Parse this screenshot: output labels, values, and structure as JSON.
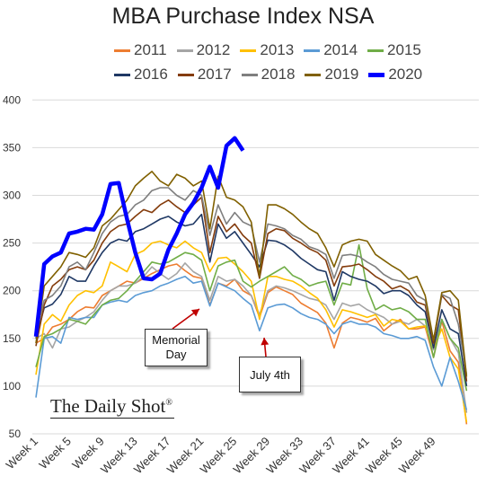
{
  "chart_data": {
    "type": "line",
    "title": "MBA Purchase Index NSA",
    "xlabel": "",
    "ylabel": "",
    "ylim": [
      50,
      400
    ],
    "yticks": [
      "50",
      "100",
      "150",
      "200",
      "250",
      "300",
      "350",
      "400"
    ],
    "xtick_labels": [
      "Week 1",
      "Week 5",
      "Week 9",
      "Week 13",
      "Week 17",
      "Week 21",
      "Week 25",
      "Week 29",
      "Week 33",
      "Week 37",
      "Week 41",
      "Week 45",
      "Week 49"
    ],
    "xtick_weeks": [
      1,
      5,
      9,
      13,
      17,
      21,
      25,
      29,
      33,
      37,
      41,
      45,
      49
    ],
    "grid": true,
    "legend_position": "top",
    "series": [
      {
        "name": "2011",
        "color": "#ED7D31",
        "width": 1.6,
        "values": [
          145,
          150,
          162,
          165,
          170,
          178,
          183,
          182,
          195,
          200,
          205,
          210,
          208,
          213,
          218,
          222,
          226,
          228,
          221,
          215,
          213,
          185,
          208,
          205,
          212,
          200,
          195,
          172,
          198,
          204,
          200,
          196,
          187,
          182,
          177,
          166,
          140,
          166,
          172,
          170,
          167,
          171,
          158,
          165,
          170,
          160,
          160,
          162,
          130,
          168,
          137,
          125,
          60
        ]
      },
      {
        "name": "2012",
        "color": "#A5A5A5",
        "width": 1.6,
        "values": [
          150,
          155,
          140,
          160,
          162,
          168,
          172,
          178,
          190,
          200,
          205,
          205,
          208,
          215,
          225,
          218,
          212,
          218,
          229,
          220,
          215,
          190,
          215,
          210,
          212,
          205,
          195,
          175,
          200,
          205,
          203,
          200,
          196,
          192,
          190,
          185,
          170,
          187,
          184,
          186,
          180,
          176,
          172,
          165,
          168,
          165,
          170,
          163,
          138,
          170,
          150,
          135,
          72
        ]
      },
      {
        "name": "2013",
        "color": "#FFC000",
        "width": 1.6,
        "values": [
          112,
          165,
          175,
          168,
          185,
          195,
          200,
          198,
          205,
          230,
          225,
          220,
          238,
          242,
          250,
          252,
          248,
          245,
          252,
          245,
          240,
          220,
          234,
          235,
          228,
          220,
          210,
          170,
          215,
          215,
          212,
          210,
          205,
          198,
          192,
          180,
          162,
          180,
          178,
          175,
          172,
          175,
          163,
          170,
          168,
          160,
          162,
          163,
          140,
          160,
          130,
          118,
          62
        ]
      },
      {
        "name": "2014",
        "color": "#5B9BD5",
        "width": 1.6,
        "values": [
          88,
          150,
          152,
          145,
          172,
          170,
          172,
          172,
          185,
          188,
          190,
          188,
          195,
          198,
          200,
          205,
          208,
          212,
          215,
          208,
          210,
          184,
          208,
          204,
          200,
          192,
          185,
          158,
          182,
          185,
          186,
          182,
          176,
          172,
          170,
          165,
          155,
          165,
          168,
          165,
          165,
          162,
          155,
          153,
          150,
          150,
          152,
          148,
          120,
          100,
          130,
          105,
          75
        ]
      },
      {
        "name": "2015",
        "color": "#70AD47",
        "width": 1.6,
        "values": [
          120,
          152,
          155,
          160,
          170,
          168,
          165,
          175,
          185,
          190,
          192,
          200,
          210,
          220,
          230,
          228,
          230,
          235,
          240,
          238,
          232,
          200,
          226,
          230,
          232,
          210,
          204,
          210,
          215,
          220,
          225,
          216,
          212,
          205,
          208,
          210,
          185,
          208,
          206,
          248,
          202,
          180,
          185,
          180,
          182,
          178,
          170,
          170,
          130,
          170,
          150,
          140,
          95
        ]
      },
      {
        "name": "2016",
        "color": "#1F3864",
        "width": 1.6,
        "values": [
          150,
          182,
          186,
          196,
          215,
          210,
          210,
          226,
          240,
          250,
          254,
          252,
          262,
          265,
          270,
          275,
          278,
          272,
          268,
          270,
          280,
          230,
          270,
          255,
          262,
          250,
          238,
          225,
          253,
          252,
          248,
          242,
          234,
          228,
          222,
          220,
          190,
          220,
          215,
          212,
          210,
          205,
          197,
          200,
          200,
          195,
          185,
          178,
          140,
          180,
          160,
          155,
          100
        ]
      },
      {
        "name": "2017",
        "color": "#843C0C",
        "width": 1.6,
        "values": [
          142,
          185,
          205,
          212,
          222,
          225,
          222,
          232,
          250,
          262,
          268,
          270,
          278,
          285,
          282,
          290,
          295,
          288,
          282,
          290,
          298,
          240,
          278,
          262,
          270,
          258,
          250,
          213,
          260,
          265,
          263,
          255,
          250,
          244,
          240,
          232,
          205,
          225,
          226,
          228,
          222,
          215,
          210,
          202,
          205,
          200,
          188,
          185,
          145,
          195,
          185,
          180,
          105
        ]
      },
      {
        "name": "2018",
        "color": "#7F7F7F",
        "width": 1.6,
        "values": [
          155,
          190,
          195,
          205,
          225,
          230,
          222,
          240,
          260,
          272,
          278,
          280,
          290,
          295,
          305,
          308,
          308,
          300,
          295,
          305,
          300,
          258,
          290,
          270,
          282,
          272,
          268,
          230,
          270,
          268,
          265,
          258,
          254,
          246,
          243,
          238,
          213,
          237,
          238,
          236,
          230,
          225,
          217,
          212,
          210,
          208,
          195,
          190,
          148,
          196,
          192,
          165,
          112
        ]
      },
      {
        "name": "2019",
        "color": "#806000",
        "width": 1.6,
        "values": [
          145,
          205,
          215,
          225,
          240,
          238,
          235,
          245,
          268,
          275,
          285,
          295,
          310,
          318,
          325,
          315,
          310,
          322,
          318,
          310,
          315,
          265,
          320,
          298,
          295,
          288,
          272,
          215,
          290,
          290,
          286,
          280,
          272,
          265,
          260,
          245,
          225,
          248,
          252,
          254,
          252,
          238,
          232,
          226,
          221,
          212,
          215,
          195,
          148,
          198,
          200,
          190,
          110
        ]
      },
      {
        "name": "2020",
        "color": "#0000FF",
        "width": 4.5,
        "values": [
          152,
          228,
          236,
          240,
          260,
          262,
          265,
          264,
          280,
          312,
          313,
          275,
          240,
          213,
          212,
          218,
          243,
          260,
          280,
          292,
          308,
          330,
          308,
          352,
          360,
          347
        ]
      }
    ]
  },
  "annotations": {
    "memorial": {
      "label_line1": "Memorial",
      "label_line2": "Day"
    },
    "july": {
      "label": "July 4th"
    }
  },
  "brand": {
    "name": "The Daily Shot",
    "mark": "®"
  }
}
